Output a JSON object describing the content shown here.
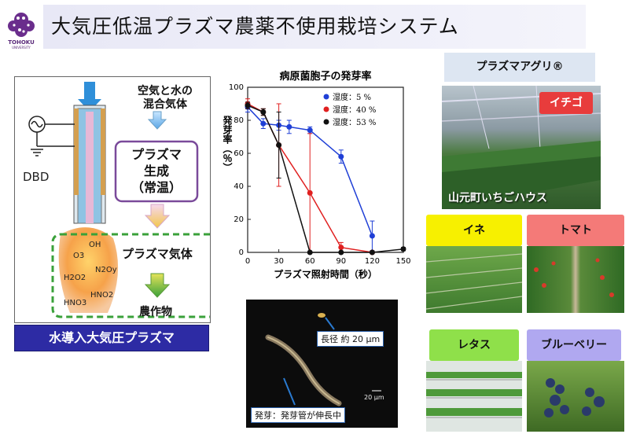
{
  "header": {
    "title": "大気圧低温プラズマ農薬不使用栽培システム"
  },
  "logo": {
    "name": "TOHOKU",
    "sub": "UNIVERSITY"
  },
  "diagram": {
    "inlet_label": "空気と水の\n混合気体",
    "dbd_label": "DBD",
    "plasma_label": "プラズマ\n生成\n（常温）",
    "gas_label": "プラズマ気体",
    "crop_label": "農作物",
    "molecules": [
      "OH",
      "O3",
      "N2Oy",
      "H2O2",
      "HNO2",
      "HNO3"
    ],
    "banner": "水導入大気圧プラズマ"
  },
  "chart_data": {
    "type": "line",
    "title": "病原菌胞子の発芽率",
    "xlabel": "プラズマ照射時間（秒）",
    "ylabel": "発芽率（％）",
    "xlim": [
      0,
      150
    ],
    "ylim": [
      0,
      100
    ],
    "xticks": [
      0,
      30,
      60,
      90,
      120,
      150
    ],
    "yticks": [
      0,
      20,
      40,
      60,
      80,
      100
    ],
    "legend_position": "top-right",
    "series": [
      {
        "name": "湿度：5 %",
        "color": "#1f3fd6",
        "x": [
          0,
          15,
          30,
          40,
          60,
          90,
          120
        ],
        "y": [
          88,
          78,
          77,
          76,
          74,
          58,
          10
        ],
        "err": [
          3,
          3,
          3,
          4,
          2,
          4,
          9
        ]
      },
      {
        "name": "湿度：40 %",
        "color": "#e02020",
        "x": [
          0,
          15,
          30,
          60,
          90,
          120
        ],
        "y": [
          90,
          85,
          65,
          36,
          3,
          0
        ],
        "err": [
          3,
          2,
          25,
          36,
          3,
          0
        ]
      },
      {
        "name": "湿度：53 %",
        "color": "#111111",
        "x": [
          0,
          15,
          30,
          60,
          90,
          120,
          150
        ],
        "y": [
          89,
          85,
          65,
          0,
          0,
          0,
          2
        ],
        "err": [
          2,
          2,
          20,
          0,
          0,
          0,
          1
        ]
      }
    ]
  },
  "micrograph": {
    "callout_top": "長径 約 20 μm",
    "scale_label": "20 μm",
    "callout_bottom": "発芽：発芽管が伸長中"
  },
  "right": {
    "title": "プラズマアグリ®",
    "strawberry_tag": "イチゴ",
    "strawberry_caption": "山元町いちごハウス",
    "rice_tag": "イネ",
    "tomato_tag": "トマト",
    "lettuce_tag": "レタス",
    "blueberry_tag": "ブルーベリー"
  }
}
